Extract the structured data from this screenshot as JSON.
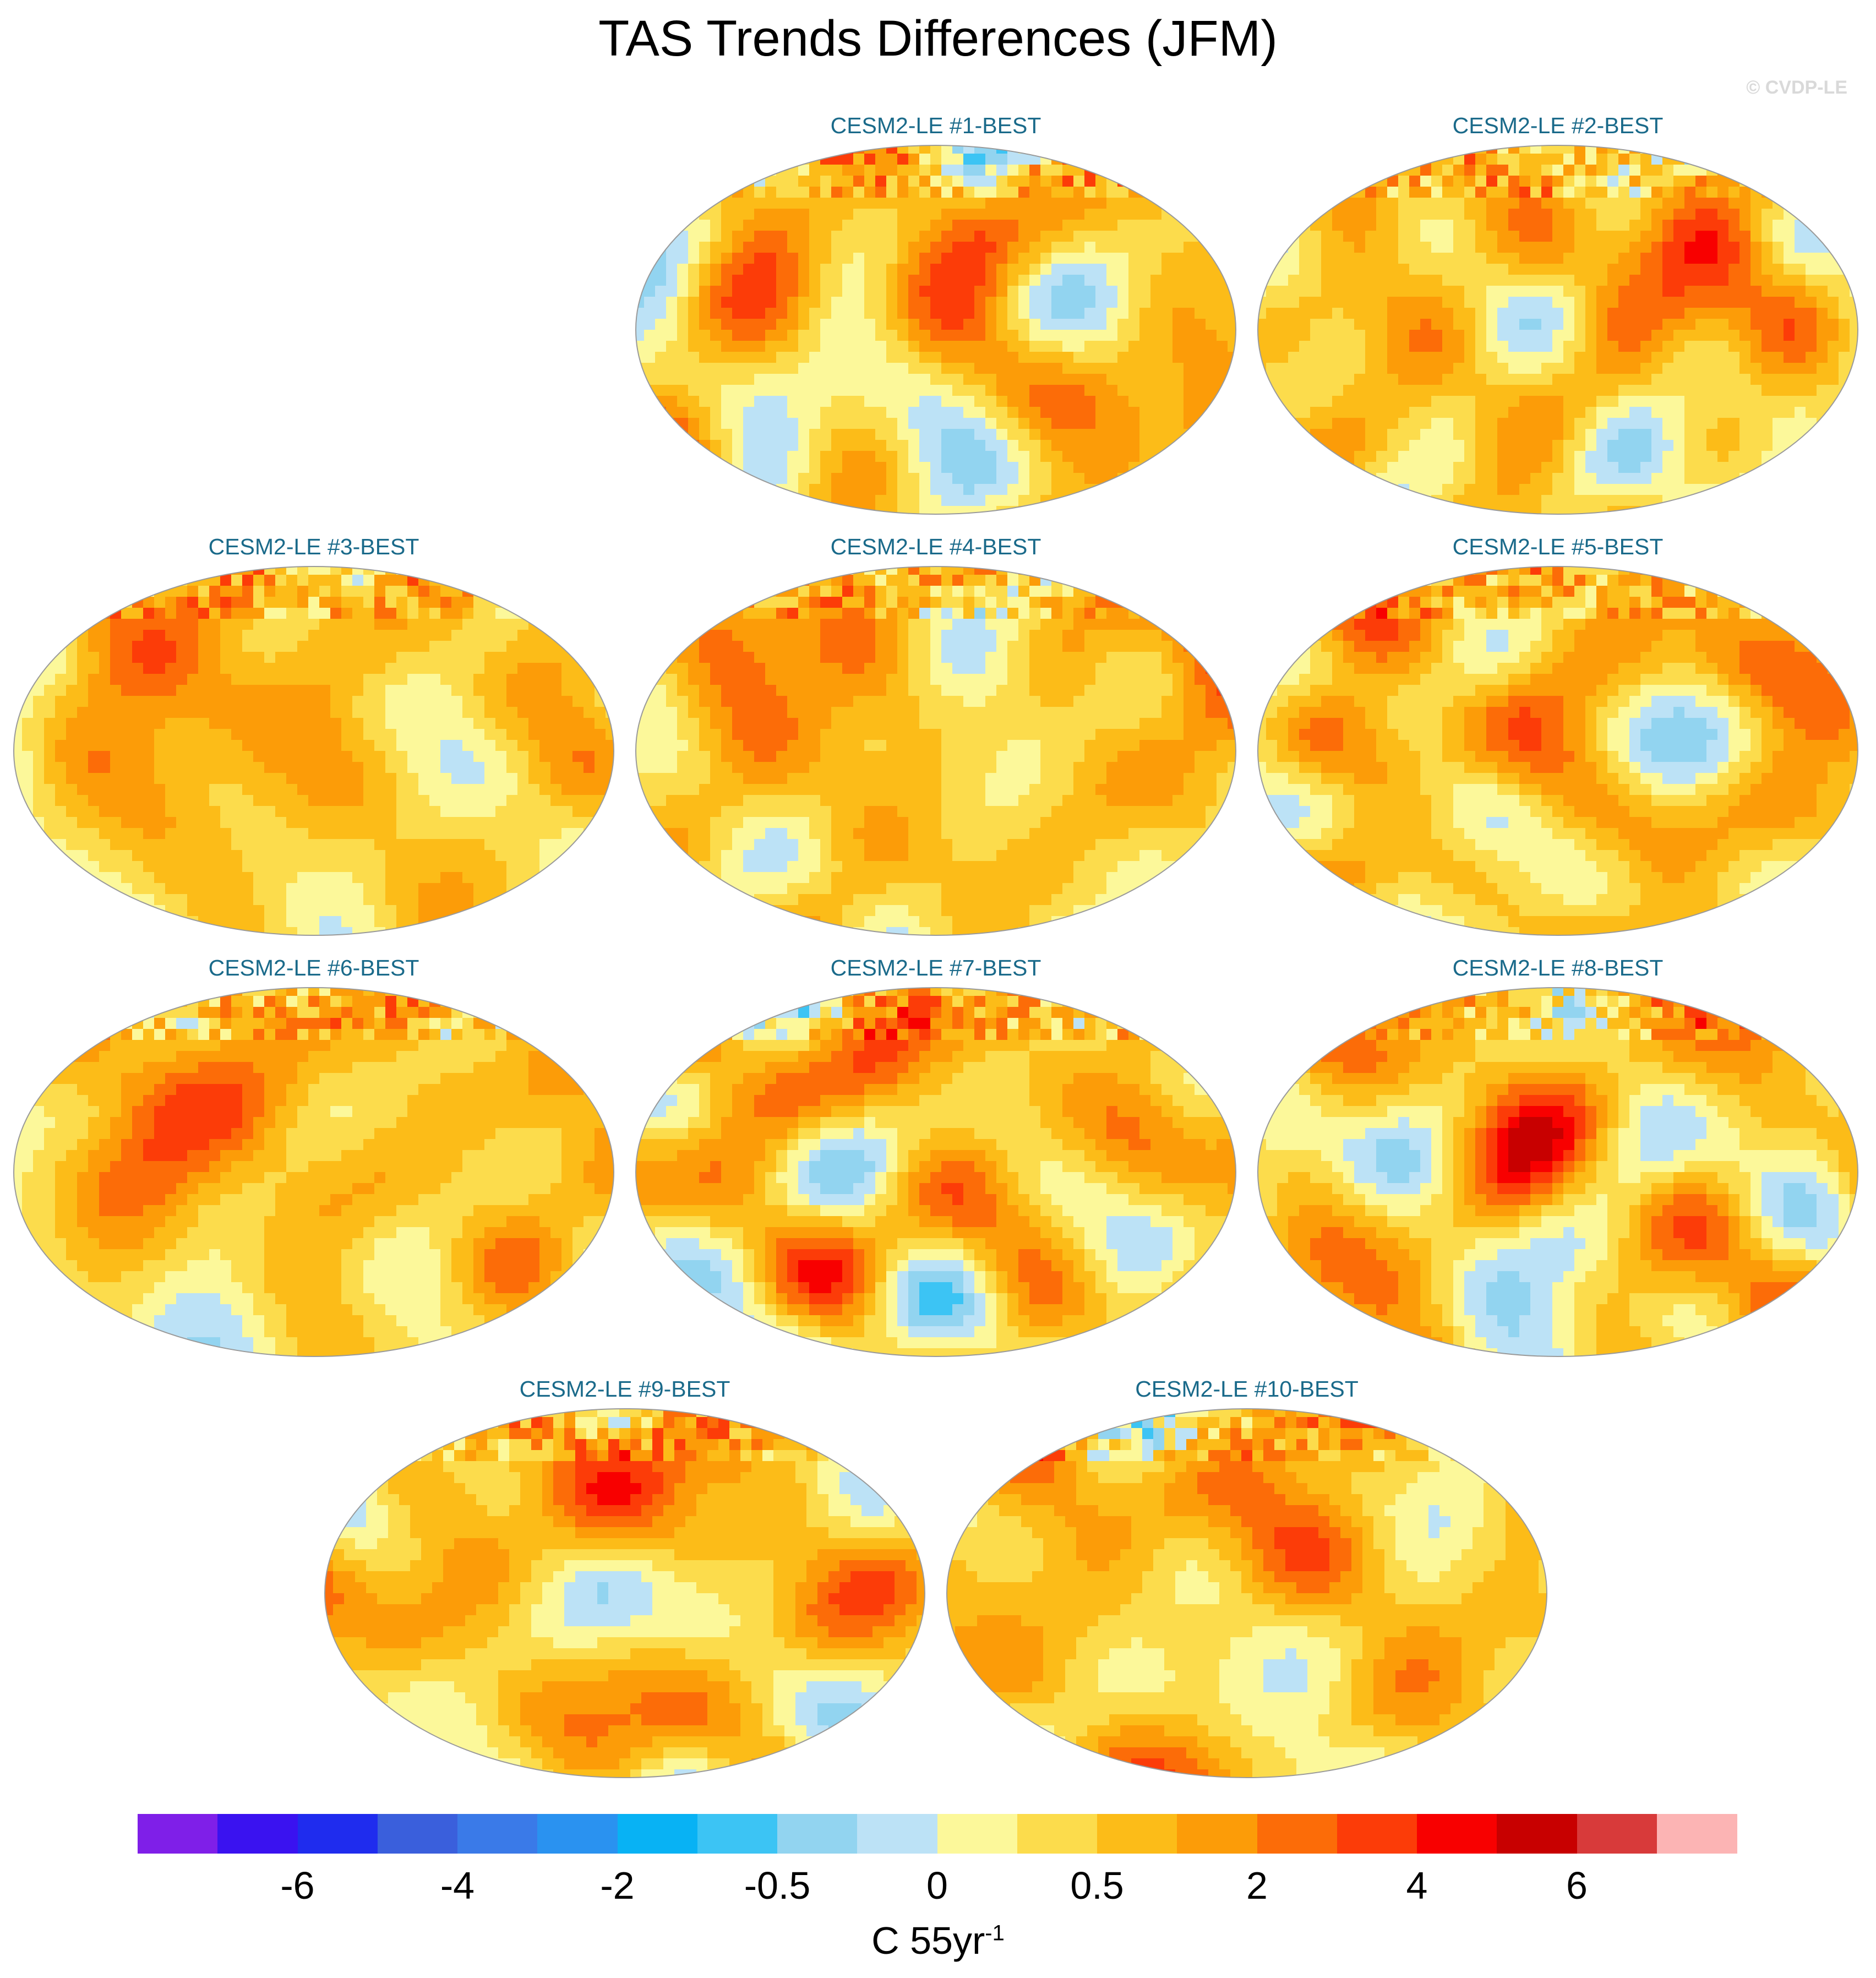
{
  "title": "TAS Trends Differences (JFM)",
  "copyright": "© CVDP-LE",
  "panels": [
    {
      "label": "CESM2-LE #1-BEST",
      "seed": 1
    },
    {
      "label": "CESM2-LE #2-BEST",
      "seed": 2
    },
    {
      "label": "CESM2-LE #3-BEST",
      "seed": 3
    },
    {
      "label": "CESM2-LE #4-BEST",
      "seed": 4
    },
    {
      "label": "CESM2-LE #5-BEST",
      "seed": 5
    },
    {
      "label": "CESM2-LE #6-BEST",
      "seed": 6
    },
    {
      "label": "CESM2-LE #7-BEST",
      "seed": 7
    },
    {
      "label": "CESM2-LE #8-BEST",
      "seed": 8
    },
    {
      "label": "CESM2-LE #9-BEST",
      "seed": 9
    },
    {
      "label": "CESM2-LE #10-BEST",
      "seed": 10
    }
  ],
  "colorbar": {
    "colors": [
      "#7f1fe8",
      "#3a12f0",
      "#1f2cee",
      "#3a5fdc",
      "#3a7ae8",
      "#2a92f0",
      "#08b2f4",
      "#3cc4f4",
      "#92d4f0",
      "#bce2f6",
      "#fcf89a",
      "#fcdc4c",
      "#fcbc18",
      "#fc9c08",
      "#fc6c08",
      "#fc3c08",
      "#f80000",
      "#c80000",
      "#d83a3a",
      "#fcb4b4"
    ],
    "ticks": [
      "-6",
      "-4",
      "-2",
      "-0.5",
      "0",
      "0.5",
      "2",
      "4",
      "6"
    ],
    "tick_boundaries": [
      2,
      4,
      6,
      8,
      10,
      12,
      14,
      16,
      18
    ],
    "units_main": "C 55yr",
    "units_sup": "-1"
  }
}
